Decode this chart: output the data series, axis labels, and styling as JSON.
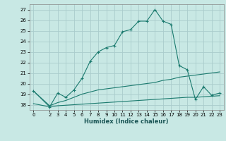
{
  "title": "",
  "xlabel": "Humidex (Indice chaleur)",
  "ylabel": "",
  "bg_color": "#c8e8e4",
  "grid_color": "#aacccc",
  "line_color": "#1a7a6e",
  "xlim": [
    -0.5,
    23.5
  ],
  "ylim": [
    17.5,
    27.5
  ],
  "yticks": [
    18,
    19,
    20,
    21,
    22,
    23,
    24,
    25,
    26,
    27
  ],
  "xticks": [
    0,
    2,
    3,
    4,
    5,
    6,
    7,
    8,
    9,
    10,
    11,
    12,
    13,
    14,
    15,
    16,
    17,
    18,
    19,
    20,
    21,
    22,
    23
  ],
  "line1_x": [
    0,
    2,
    3,
    4,
    5,
    6,
    7,
    8,
    9,
    10,
    11,
    12,
    13,
    14,
    15,
    16,
    17,
    18,
    19,
    20,
    21,
    22,
    23
  ],
  "line1_y": [
    19.3,
    17.8,
    19.1,
    18.7,
    19.4,
    20.5,
    22.1,
    23.0,
    23.4,
    23.6,
    24.9,
    25.1,
    25.9,
    25.9,
    27.0,
    25.9,
    25.6,
    21.7,
    21.3,
    18.5,
    19.7,
    18.9,
    19.1
  ],
  "line2_x": [
    0,
    2,
    3,
    4,
    5,
    6,
    7,
    8,
    9,
    10,
    11,
    12,
    13,
    14,
    15,
    16,
    17,
    18,
    19,
    20,
    21,
    22,
    23
  ],
  "line2_y": [
    19.3,
    17.9,
    18.2,
    18.4,
    18.7,
    19.0,
    19.2,
    19.4,
    19.5,
    19.6,
    19.7,
    19.8,
    19.9,
    20.0,
    20.1,
    20.3,
    20.4,
    20.6,
    20.7,
    20.8,
    20.9,
    21.0,
    21.1
  ],
  "line3_x": [
    0,
    2,
    3,
    4,
    5,
    6,
    7,
    8,
    9,
    10,
    11,
    12,
    13,
    14,
    15,
    16,
    17,
    18,
    19,
    20,
    21,
    22,
    23
  ],
  "line3_y": [
    18.1,
    17.8,
    17.9,
    17.95,
    18.0,
    18.05,
    18.1,
    18.15,
    18.2,
    18.25,
    18.3,
    18.35,
    18.4,
    18.45,
    18.5,
    18.55,
    18.6,
    18.65,
    18.7,
    18.7,
    18.75,
    18.8,
    18.85
  ]
}
